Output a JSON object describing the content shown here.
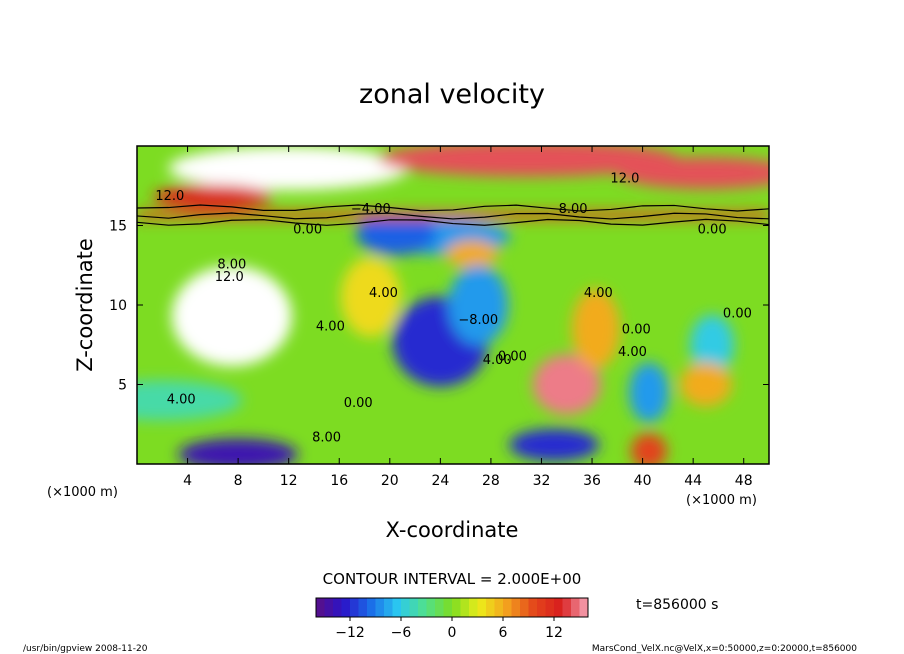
{
  "chart_data": {
    "type": "heatmap",
    "title": "zonal velocity",
    "xlabel": "X-coordinate",
    "ylabel": "Z-coordinate",
    "x_unit": "(×1000 m)",
    "z_unit": "(×1000 m)",
    "xlim": [
      0,
      50
    ],
    "ylim": [
      0,
      20
    ],
    "x_ticks": [
      "4",
      "8",
      "12",
      "16",
      "20",
      "24",
      "28",
      "32",
      "36",
      "40",
      "44",
      "48"
    ],
    "y_ticks": [
      "5",
      "10",
      "15"
    ],
    "contour_interval_text": "CONTOUR INTERVAL = 2.000E+00",
    "time_text": "t=856000 s",
    "colorbar": {
      "range": [
        -16,
        16
      ],
      "tick_labels": [
        "−12",
        "−6",
        "0",
        "6",
        "12"
      ],
      "tick_values": [
        -12,
        -6,
        0,
        6,
        12
      ]
    },
    "features": [
      {
        "x": 12,
        "z": 18.6,
        "value": 22
      },
      {
        "x": 31,
        "z": 19.2,
        "value": 14
      },
      {
        "x": 45,
        "z": 18.3,
        "value": 14
      },
      {
        "x": 6,
        "z": 16.8,
        "value": 12
      },
      {
        "x": 24,
        "z": 14.3,
        "value": -8
      },
      {
        "x": 20.5,
        "z": 14.5,
        "value": -10
      },
      {
        "x": 26.5,
        "z": 13.2,
        "value": 6
      },
      {
        "x": 7.5,
        "z": 9.3,
        "value": 18
      },
      {
        "x": 24,
        "z": 7.7,
        "value": -12
      },
      {
        "x": 27,
        "z": 10,
        "value": -8
      },
      {
        "x": 18.5,
        "z": 10.5,
        "value": 4
      },
      {
        "x": 34,
        "z": 5,
        "value": 15
      },
      {
        "x": 36.3,
        "z": 8.5,
        "value": 6
      },
      {
        "x": 40.5,
        "z": 4.5,
        "value": -8
      },
      {
        "x": 45.5,
        "z": 7.5,
        "value": -6
      },
      {
        "x": 45,
        "z": 5,
        "value": 6
      },
      {
        "x": 8,
        "z": 0.6,
        "value": -14
      },
      {
        "x": 33,
        "z": 1.2,
        "value": -12
      },
      {
        "x": 40.5,
        "z": 0.8,
        "value": 10
      },
      {
        "x": 2,
        "z": 4,
        "value": -4
      }
    ],
    "contour_labels": [
      {
        "x": 2.6,
        "z": 16.6,
        "text": "12.0"
      },
      {
        "x": 38.6,
        "z": 17.7,
        "text": "12.0"
      },
      {
        "x": 18.5,
        "z": 15.8,
        "text": "−4.00"
      },
      {
        "x": 34.5,
        "z": 15.8,
        "text": "8.00"
      },
      {
        "x": 13.5,
        "z": 14.5,
        "text": "0.00"
      },
      {
        "x": 45.5,
        "z": 14.5,
        "text": "0.00"
      },
      {
        "x": 7.5,
        "z": 12.3,
        "text": "8.00"
      },
      {
        "x": 7.3,
        "z": 11.5,
        "text": "12.0"
      },
      {
        "x": 19.5,
        "z": 10.5,
        "text": "4.00"
      },
      {
        "x": 36.5,
        "z": 10.5,
        "text": "4.00"
      },
      {
        "x": 27,
        "z": 8.8,
        "text": "−8.00"
      },
      {
        "x": 15.3,
        "z": 8.4,
        "text": "4.00"
      },
      {
        "x": 39.5,
        "z": 8.2,
        "text": "0.00"
      },
      {
        "x": 47.5,
        "z": 9.2,
        "text": "0.00"
      },
      {
        "x": 28.5,
        "z": 6.3,
        "text": "4.00"
      },
      {
        "x": 29.7,
        "z": 6.5,
        "text": "0.00"
      },
      {
        "x": 39.2,
        "z": 6.8,
        "text": "4.00"
      },
      {
        "x": 3.5,
        "z": 3.8,
        "text": "4.00"
      },
      {
        "x": 17.5,
        "z": 3.6,
        "text": "0.00"
      },
      {
        "x": 15,
        "z": 1.4,
        "text": "8.00"
      }
    ]
  },
  "footer": {
    "left": "/usr/bin/gpview  2008-11-20",
    "right": "MarsCond_VelX.nc@VelX,x=0:50000,z=0:20000,t=856000"
  },
  "colors": {
    "colormap": [
      "#5b0f86",
      "#2a14c8",
      "#1a6ce8",
      "#2bc8f0",
      "#4fe08e",
      "#7ddc22",
      "#ecec1a",
      "#f3a21e",
      "#e4481b",
      "#d81e1e",
      "#f7a6b8"
    ]
  }
}
